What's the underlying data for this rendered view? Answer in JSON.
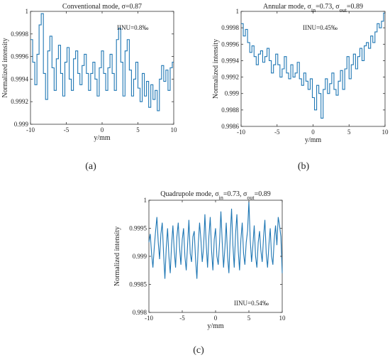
{
  "line_color": "#1f77b4",
  "chart_data": [
    {
      "type": "line",
      "panel_label": "(a)",
      "title": "Conventional mode, σ=0.87",
      "title_parts": [
        {
          "t": "Conventional mode, σ=0.87"
        }
      ],
      "xlabel": "y/mm",
      "ylabel": "Normalized intensity",
      "annotation": "IINU=0.8‰",
      "xlim": [
        -10,
        10
      ],
      "ylim": [
        0.999,
        1.0
      ],
      "xticks": [
        -10,
        -5,
        0,
        5,
        10
      ],
      "yticks": [
        0.999,
        0.9992,
        0.9994,
        0.9996,
        0.9998,
        1.0
      ],
      "ytick_labels": [
        "0.999",
        "0.9992",
        "0.9994",
        "0.9996",
        "0.9998",
        "1"
      ],
      "step": true,
      "series": [
        {
          "x": [
            -10,
            -9.7,
            -9.4,
            -9.1,
            -8.8,
            -8.5,
            -8.2,
            -7.9,
            -7.6,
            -7.3,
            -7.0,
            -6.7,
            -6.4,
            -6.1,
            -5.8,
            -5.5,
            -5.2,
            -4.9,
            -4.6,
            -4.3,
            -4.0,
            -3.7,
            -3.4,
            -3.1,
            -2.8,
            -2.5,
            -2.2,
            -1.9,
            -1.6,
            -1.3,
            -1.0,
            -0.7,
            -0.4,
            -0.1,
            0.2,
            0.5,
            0.8,
            1.1,
            1.4,
            1.7,
            2.0,
            2.3,
            2.6,
            2.9,
            3.2,
            3.5,
            3.8,
            4.1,
            4.4,
            4.7,
            5.0,
            5.3,
            5.6,
            5.9,
            6.2,
            6.5,
            6.8,
            7.1,
            7.4,
            7.7,
            8.0,
            8.3,
            8.6,
            8.9,
            9.2,
            9.5,
            9.8
          ],
          "y": [
            0.99975,
            0.99955,
            0.99935,
            0.99962,
            0.99988,
            0.99998,
            0.99945,
            0.99922,
            0.99965,
            0.99978,
            0.9995,
            0.9993,
            0.99958,
            0.9997,
            0.99945,
            0.99925,
            0.99955,
            0.99968,
            0.9994,
            0.9993,
            0.99958,
            0.99965,
            0.99945,
            0.99935,
            0.99952,
            0.99962,
            0.99945,
            0.9993,
            0.99945,
            0.99955,
            0.9994,
            0.99925,
            0.9995,
            0.99965,
            0.99945,
            0.9993,
            0.9995,
            0.99962,
            0.99945,
            0.9993,
            0.99975,
            0.99985,
            0.99955,
            0.99925,
            0.99965,
            0.99975,
            0.99948,
            0.99925,
            0.9994,
            0.99955,
            0.99932,
            0.9992,
            0.99945,
            0.99925,
            0.99938,
            0.99915,
            0.99935,
            0.99922,
            0.9993,
            0.99912,
            0.9994,
            0.99952,
            0.99938,
            0.99948,
            0.9993,
            0.9995,
            0.99955
          ]
        }
      ]
    },
    {
      "type": "line",
      "panel_label": "(b)",
      "title": "Annular mode, σin=0.73, σout=0.89",
      "title_parts": [
        {
          "t": "Annular mode, σ"
        },
        {
          "t": "in",
          "sub": true
        },
        {
          "t": "=0.73, σ"
        },
        {
          "t": "out",
          "sub": true
        },
        {
          "t": "=0.89"
        }
      ],
      "xlabel": "y/mm",
      "ylabel": "Normalized intensity",
      "annotation": "IINU=0.45‰",
      "xlim": [
        -10,
        10
      ],
      "ylim": [
        0.9986,
        1.0
      ],
      "xticks": [
        -10,
        -5,
        0,
        5,
        10
      ],
      "yticks": [
        0.9986,
        0.9988,
        0.999,
        0.9992,
        0.9994,
        0.9996,
        0.9998,
        1.0
      ],
      "ytick_labels": [
        "0.9986",
        "0.9988",
        "0.999",
        "0.9992",
        "0.9994",
        "0.9996",
        "0.9998",
        "1"
      ],
      "step": true,
      "series": [
        {
          "x": [
            -10,
            -9.7,
            -9.4,
            -9.1,
            -8.8,
            -8.5,
            -8.2,
            -7.9,
            -7.6,
            -7.3,
            -7.0,
            -6.7,
            -6.4,
            -6.1,
            -5.8,
            -5.5,
            -5.2,
            -4.9,
            -4.6,
            -4.3,
            -4.0,
            -3.7,
            -3.4,
            -3.1,
            -2.8,
            -2.5,
            -2.2,
            -1.9,
            -1.6,
            -1.3,
            -1.0,
            -0.7,
            -0.4,
            -0.1,
            0.2,
            0.5,
            0.8,
            1.1,
            1.4,
            1.7,
            2.0,
            2.3,
            2.6,
            2.9,
            3.2,
            3.5,
            3.8,
            4.1,
            4.4,
            4.7,
            5.0,
            5.3,
            5.6,
            5.9,
            6.2,
            6.5,
            6.8,
            7.1,
            7.4,
            7.7,
            8.0,
            8.3,
            8.6,
            8.9,
            9.2,
            9.5,
            9.8
          ],
          "y": [
            0.99985,
            0.9997,
            0.99978,
            0.99962,
            0.9995,
            0.99958,
            0.99945,
            0.99935,
            0.99948,
            0.99952,
            0.99938,
            0.99945,
            0.99955,
            0.9994,
            0.99925,
            0.99935,
            0.99948,
            0.99935,
            0.9992,
            0.9993,
            0.99945,
            0.99925,
            0.99918,
            0.99935,
            0.9992,
            0.99925,
            0.99938,
            0.99918,
            0.9991,
            0.99925,
            0.99915,
            0.99905,
            0.99918,
            0.99895,
            0.9988,
            0.9991,
            0.999,
            0.9987,
            0.99905,
            0.99918,
            0.999,
            0.99912,
            0.99925,
            0.99905,
            0.99898,
            0.99915,
            0.99928,
            0.99905,
            0.9993,
            0.99945,
            0.99918,
            0.99935,
            0.99948,
            0.9993,
            0.99945,
            0.99955,
            0.9994,
            0.99958,
            0.99962,
            0.99955,
            0.9997,
            0.99962,
            0.99975,
            0.99985,
            0.9998,
            0.99988,
            0.99998
          ]
        }
      ]
    },
    {
      "type": "line",
      "panel_label": "(c)",
      "title": "Quadrupole mode, σin=0.73, σout=0.89",
      "title_parts": [
        {
          "t": "Quadrupole mode, σ"
        },
        {
          "t": "in",
          "sub": true
        },
        {
          "t": "=0.73, σ"
        },
        {
          "t": "out",
          "sub": true
        },
        {
          "t": "=0.89"
        }
      ],
      "xlabel": "y/mm",
      "ylabel": "Normalized intensity",
      "annotation": "IINU=0.54‰",
      "xlim": [
        -10,
        10
      ],
      "ylim": [
        0.998,
        1.0
      ],
      "xticks": [
        -10,
        -5,
        0,
        5,
        10
      ],
      "yticks": [
        0.998,
        0.9985,
        0.999,
        0.9995,
        1.0
      ],
      "ytick_labels": [
        "0.998",
        "0.9985",
        "0.999",
        "0.9995",
        "1"
      ],
      "step": false,
      "series": [
        {
          "x": [
            -10,
            -9.8,
            -9.6,
            -9.4,
            -9.2,
            -9.0,
            -8.8,
            -8.6,
            -8.4,
            -8.2,
            -8.0,
            -7.8,
            -7.6,
            -7.4,
            -7.2,
            -7.0,
            -6.8,
            -6.6,
            -6.4,
            -6.2,
            -6.0,
            -5.8,
            -5.6,
            -5.4,
            -5.2,
            -5.0,
            -4.8,
            -4.6,
            -4.4,
            -4.2,
            -4.0,
            -3.8,
            -3.6,
            -3.4,
            -3.2,
            -3.0,
            -2.8,
            -2.6,
            -2.4,
            -2.2,
            -2.0,
            -1.8,
            -1.6,
            -1.4,
            -1.2,
            -1.0,
            -0.8,
            -0.6,
            -0.4,
            -0.2,
            0.0,
            0.2,
            0.4,
            0.6,
            0.8,
            1.0,
            1.2,
            1.4,
            1.6,
            1.8,
            2.0,
            2.2,
            2.4,
            2.6,
            2.8,
            3.0,
            3.2,
            3.4,
            3.6,
            3.8,
            4.0,
            4.2,
            4.4,
            4.6,
            4.8,
            5.0,
            5.2,
            5.4,
            5.6,
            5.8,
            6.0,
            6.2,
            6.4,
            6.6,
            6.8,
            7.0,
            7.2,
            7.4,
            7.6,
            7.8,
            8.0,
            8.2,
            8.4,
            8.6,
            8.8,
            9.0,
            9.2,
            9.4,
            9.6,
            9.8,
            10.0
          ],
          "y": [
            0.99925,
            0.9994,
            0.99905,
            0.9988,
            0.99915,
            0.99945,
            0.9997,
            0.99925,
            0.99895,
            0.9994,
            0.9996,
            0.99905,
            0.9986,
            0.99915,
            0.9995,
            0.999,
            0.9987,
            0.9992,
            0.99955,
            0.9991,
            0.9988,
            0.99935,
            0.9996,
            0.99915,
            0.99885,
            0.9993,
            0.9995,
            0.999,
            0.99875,
            0.9992,
            0.99965,
            0.99905,
            0.9989,
            0.99935,
            0.99945,
            0.99895,
            0.9986,
            0.9992,
            0.9996,
            0.9993,
            0.9989,
            0.99915,
            0.99975,
            0.9992,
            0.9988,
            0.99935,
            0.9997,
            0.9991,
            0.99875,
            0.9993,
            0.9995,
            0.999,
            0.99885,
            0.99925,
            0.9998,
            0.99925,
            0.9988,
            0.99915,
            0.9996,
            0.999,
            0.9987,
            0.99935,
            0.99985,
            0.9992,
            0.9988,
            0.9994,
            0.99975,
            0.9991,
            0.99875,
            0.9993,
            0.9996,
            0.99905,
            0.99885,
            0.99925,
            0.99945,
            0.99998,
            0.9993,
            0.9989,
            0.9992,
            0.99955,
            0.999,
            0.9988,
            0.99925,
            0.99945,
            0.9991,
            0.9989,
            0.99935,
            0.99965,
            0.99905,
            0.9988,
            0.9992,
            0.9995,
            0.999,
            0.99885,
            0.9993,
            0.99955,
            0.9992,
            0.9997,
            0.99955,
            0.99935,
            0.9987
          ]
        }
      ]
    }
  ]
}
